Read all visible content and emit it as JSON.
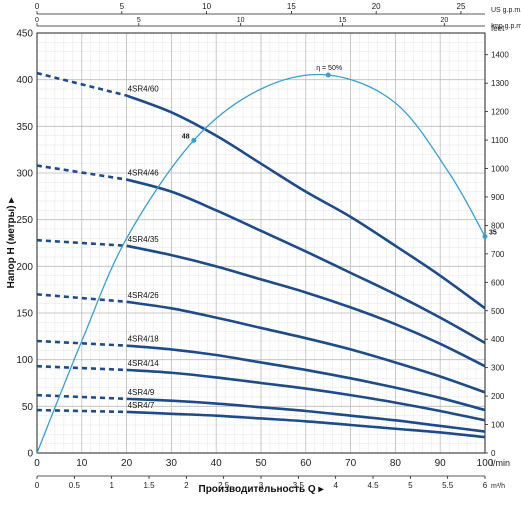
{
  "chart_data": {
    "type": "line",
    "xlabel": "Производительность Q",
    "ylabel": "Напор H (метры)",
    "xlim": [
      0,
      100
    ],
    "ylim": [
      0,
      450
    ],
    "grid": true,
    "axes": {
      "bottom_lmin": {
        "unit": "l/min",
        "ticks": [
          0,
          10,
          20,
          30,
          40,
          50,
          60,
          70,
          80,
          90,
          100
        ]
      },
      "bottom_m3h": {
        "unit": "m³/h",
        "ticks": [
          "0",
          "0.5",
          "1",
          "1.5",
          "2",
          "2.5",
          "3",
          "3.5",
          "4",
          "4.5",
          "5",
          "5.5",
          "6"
        ]
      },
      "left_m": {
        "ticks": [
          0,
          50,
          100,
          150,
          200,
          250,
          300,
          350,
          400,
          450
        ]
      },
      "right_feet": {
        "unit": "feet",
        "ticks": [
          0,
          100,
          200,
          300,
          400,
          500,
          600,
          700,
          800,
          900,
          1000,
          1100,
          1200,
          1300,
          1400
        ]
      },
      "top_us_gpm": {
        "unit": "US g.p.m.",
        "ticks": [
          0,
          5,
          10,
          15,
          20,
          25
        ]
      },
      "top_imp_gpm": {
        "unit": "Imp g.p.m.",
        "ticks": [
          0,
          5,
          10,
          15,
          20
        ]
      }
    },
    "series": [
      {
        "name": "4SR4/60",
        "x": [
          0,
          20,
          30,
          40,
          50,
          60,
          70,
          80,
          90,
          100
        ],
        "y": [
          407,
          383,
          365,
          340,
          310,
          280,
          253,
          222,
          190,
          155
        ]
      },
      {
        "name": "4SR4/46",
        "x": [
          0,
          20,
          30,
          40,
          50,
          60,
          70,
          80,
          90,
          100
        ],
        "y": [
          308,
          293,
          280,
          260,
          238,
          216,
          193,
          170,
          145,
          118
        ]
      },
      {
        "name": "4SR4/35",
        "x": [
          0,
          20,
          30,
          40,
          50,
          60,
          70,
          80,
          90,
          100
        ],
        "y": [
          228,
          222,
          212,
          200,
          186,
          172,
          156,
          138,
          117,
          93
        ]
      },
      {
        "name": "4SR4/26",
        "x": [
          0,
          20,
          30,
          40,
          50,
          60,
          70,
          80,
          90,
          100
        ],
        "y": [
          170,
          162,
          155,
          145,
          134,
          123,
          111,
          97,
          82,
          65
        ]
      },
      {
        "name": "4SR4/18",
        "x": [
          0,
          20,
          30,
          40,
          50,
          60,
          70,
          80,
          90,
          100
        ],
        "y": [
          120,
          115,
          111,
          105,
          97,
          89,
          80,
          70,
          59,
          46
        ]
      },
      {
        "name": "4SR4/14",
        "x": [
          0,
          20,
          30,
          40,
          50,
          60,
          70,
          80,
          90,
          100
        ],
        "y": [
          93,
          89,
          86,
          81,
          75,
          69,
          62,
          54,
          45,
          35
        ]
      },
      {
        "name": "4SR4/9",
        "x": [
          0,
          20,
          30,
          40,
          50,
          60,
          70,
          80,
          90,
          100
        ],
        "y": [
          62,
          58,
          56,
          53,
          49,
          45,
          40,
          35,
          29,
          23
        ]
      },
      {
        "name": "4SR4/7",
        "x": [
          0,
          20,
          30,
          40,
          50,
          60,
          70,
          80,
          90,
          100
        ],
        "y": [
          46,
          44,
          42,
          40,
          37,
          34,
          30,
          26,
          22,
          17
        ]
      }
    ],
    "efficiency": {
      "label": "η = 50%",
      "x": [
        0,
        10,
        20,
        35,
        50,
        65,
        80,
        92,
        100
      ],
      "y": [
        0,
        120,
        230,
        335,
        390,
        405,
        375,
        300,
        232
      ],
      "points": [
        {
          "label": "48",
          "x": 35,
          "y": 335
        },
        {
          "label": "",
          "x": 65,
          "y": 405
        },
        {
          "label": "35",
          "x": 100,
          "y": 232
        }
      ]
    }
  }
}
